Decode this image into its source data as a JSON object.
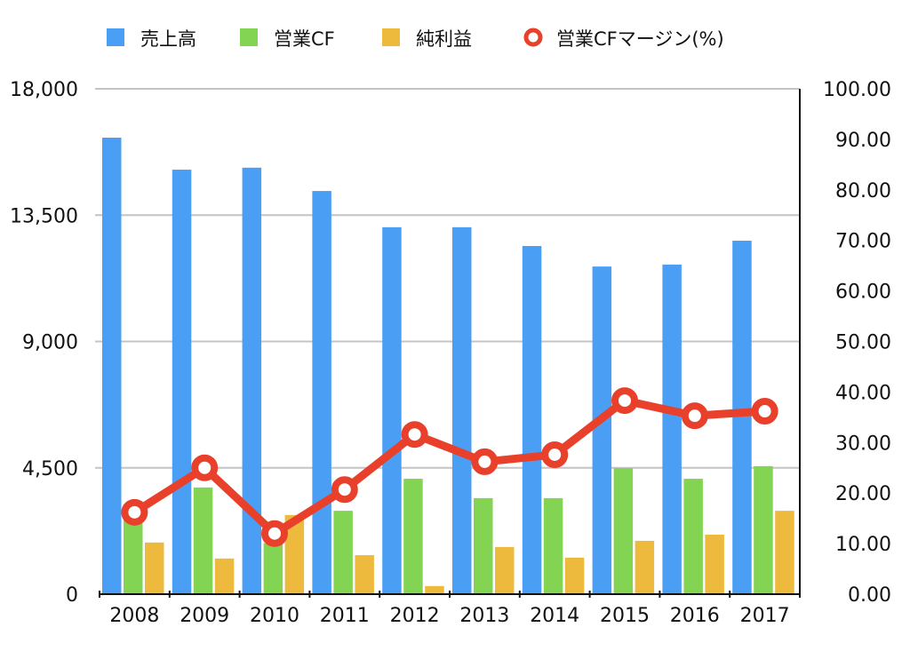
{
  "chart_data": {
    "type": "bar",
    "categories": [
      "2008",
      "2009",
      "2010",
      "2011",
      "2012",
      "2013",
      "2014",
      "2015",
      "2016",
      "2017"
    ],
    "series": [
      {
        "name": "売上高",
        "type": "bar",
        "axis": "left",
        "color": "#4a9ff5",
        "values": [
          16260,
          15120,
          15190,
          14360,
          13070,
          13070,
          12400,
          11670,
          11740,
          12590
        ]
      },
      {
        "name": "営業CF",
        "type": "bar",
        "axis": "left",
        "color": "#84d453",
        "values": [
          2640,
          3800,
          1820,
          2970,
          4110,
          3420,
          3420,
          4490,
          4110,
          4560
        ]
      },
      {
        "name": "純利益",
        "type": "bar",
        "axis": "left",
        "color": "#eeba3e",
        "values": [
          1840,
          1270,
          2820,
          1390,
          290,
          1680,
          1300,
          1900,
          2120,
          2970
        ]
      },
      {
        "name": "営業CFマージン(%)",
        "type": "line",
        "axis": "right",
        "color": "#e8402a",
        "values": [
          16.2,
          25.0,
          12.0,
          20.7,
          31.6,
          26.2,
          27.6,
          38.3,
          35.3,
          36.2
        ]
      }
    ],
    "left_axis": {
      "ylim": [
        0,
        18000
      ],
      "ticks": [
        "0",
        "4,500",
        "9,000",
        "13,500",
        "18,000"
      ],
      "tick_values": [
        0,
        4500,
        9000,
        13500,
        18000
      ]
    },
    "right_axis": {
      "ylim": [
        0,
        100
      ],
      "ticks": [
        "0.00",
        "10.00",
        "20.00",
        "30.00",
        "40.00",
        "50.00",
        "60.00",
        "70.00",
        "80.00",
        "90.00",
        "100.00"
      ]
    },
    "grid": true,
    "legend_position": "top"
  }
}
